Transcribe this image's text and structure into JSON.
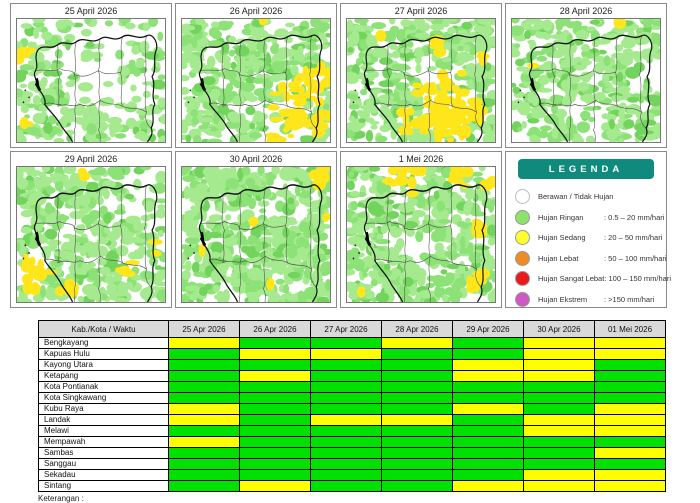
{
  "maps": {
    "colors": {
      "light_green": "#a6ea90",
      "green": "#8ce276",
      "dark_green": "#72d45c",
      "yellow": "#ffe61a"
    },
    "panels": [
      {
        "title": "25 April 2026",
        "pattern": {
          "green": 0.62,
          "white": [
            [
              0.6,
              0.18,
              0.42
            ],
            [
              0.52,
              0.48,
              0.3
            ],
            [
              0.72,
              0.62,
              0.25
            ],
            [
              0.38,
              0.32,
              0.18
            ]
          ],
          "yellow": [
            [
              0.05,
              0.3,
              0.06
            ],
            [
              0.07,
              0.84,
              0.06
            ],
            [
              0.02,
              0.62,
              0.04
            ]
          ]
        }
      },
      {
        "title": "26 April 2026",
        "pattern": {
          "green": 0.8,
          "white": [
            [
              0.35,
              0.07,
              0.13
            ],
            [
              0.62,
              0.1,
              0.1
            ],
            [
              0.13,
              0.45,
              0.08
            ]
          ],
          "yellow": [
            [
              0.8,
              0.72,
              0.28
            ],
            [
              0.92,
              0.5,
              0.14
            ],
            [
              0.68,
              0.92,
              0.14
            ],
            [
              0.97,
              0.88,
              0.12
            ],
            [
              0.55,
              0.03,
              0.05
            ]
          ]
        }
      },
      {
        "title": "27 April 2026",
        "pattern": {
          "green": 0.88,
          "white": [
            [
              0.08,
              0.55,
              0.07
            ]
          ],
          "yellow": [
            [
              0.7,
              0.72,
              0.28
            ],
            [
              0.55,
              0.58,
              0.14
            ],
            [
              0.45,
              0.85,
              0.12
            ],
            [
              0.6,
              0.2,
              0.08
            ],
            [
              0.22,
              0.13,
              0.05
            ],
            [
              0.95,
              0.33,
              0.09
            ]
          ]
        }
      },
      {
        "title": "28 April 2026",
        "pattern": {
          "green": 0.78,
          "white": [
            [
              0.78,
              0.13,
              0.2
            ],
            [
              0.96,
              0.42,
              0.14
            ],
            [
              0.52,
              0.9,
              0.1
            ],
            [
              0.3,
              0.55,
              0.08
            ]
          ],
          "yellow": [
            [
              0.12,
              0.36,
              0.04
            ],
            [
              0.73,
              0.04,
              0.04
            ],
            [
              0.3,
              0.26,
              0.03
            ]
          ]
        }
      },
      {
        "title": "29 April 2026",
        "pattern": {
          "green": 0.82,
          "white": [
            [
              0.85,
              0.1,
              0.22
            ],
            [
              0.6,
              0.28,
              0.1
            ],
            [
              0.45,
              0.12,
              0.08
            ]
          ],
          "yellow": [
            [
              0.13,
              0.78,
              0.15
            ],
            [
              0.35,
              0.92,
              0.09
            ],
            [
              0.74,
              0.72,
              0.08
            ],
            [
              0.95,
              0.6,
              0.07
            ],
            [
              0.45,
              0.04,
              0.04
            ]
          ]
        }
      },
      {
        "title": "30 April 2026",
        "pattern": {
          "green": 0.9,
          "white": [
            [
              0.3,
              0.35,
              0.08
            ],
            [
              0.65,
              0.5,
              0.06
            ]
          ],
          "yellow": [
            [
              0.93,
              0.06,
              0.07
            ],
            [
              0.5,
              0.42,
              0.04
            ],
            [
              0.62,
              0.85,
              0.05
            ],
            [
              0.98,
              0.35,
              0.05
            ],
            [
              0.15,
              0.6,
              0.03
            ]
          ]
        }
      },
      {
        "title": "1 Mei 2026",
        "pattern": {
          "green": 0.93,
          "white": [
            [
              0.45,
              0.6,
              0.1
            ],
            [
              0.58,
              0.76,
              0.08
            ]
          ],
          "yellow": [
            [
              0.45,
              0.05,
              0.13
            ],
            [
              0.75,
              0.1,
              0.12
            ],
            [
              0.96,
              0.14,
              0.1
            ],
            [
              0.9,
              0.45,
              0.07
            ],
            [
              0.87,
              0.86,
              0.08
            ],
            [
              0.08,
              0.9,
              0.05
            ],
            [
              0.3,
              0.08,
              0.06
            ]
          ]
        }
      }
    ]
  },
  "legend": {
    "title": "LEGENDA",
    "header_color": "#0f8a7c",
    "items": [
      {
        "label": "Berawan / Tidak Hujan",
        "value": "",
        "color": "#ffffff"
      },
      {
        "label": "Hujan Ringan",
        "value": ": 0.5 – 20 mm/hari",
        "color": "#8ce26a"
      },
      {
        "label": "Hujan Sedang",
        "value": ": 20 – 50 mm/hari",
        "color": "#ffff2e"
      },
      {
        "label": "Hujan Lebat",
        "value": ": 50 – 100 mm/hari",
        "color": "#ef8b26"
      },
      {
        "label": "Hujan Sangat Lebat",
        "value": ": 100 – 150 mm/hari",
        "color": "#e9191c"
      },
      {
        "label": "Hujan Ekstrem",
        "value": ": >150 mm/hari",
        "color": "#d058c4"
      }
    ]
  },
  "table": {
    "header": [
      "Kab./Kota / Waktu",
      "25 Apr 2026",
      "26 Apr 2026",
      "27 Apr 2026",
      "28 Apr 2026",
      "29 Apr 2026",
      "30 Apr 2026",
      "01 Mei 2026"
    ],
    "header_bg": "#d9d9d9",
    "colors": {
      "G": "#00e100",
      "Y": "#ffff00"
    },
    "rows": [
      {
        "name": "Bengkayang",
        "cells": [
          "Y",
          "G",
          "G",
          "Y",
          "G",
          "Y",
          "Y"
        ]
      },
      {
        "name": "Kapuas Hulu",
        "cells": [
          "G",
          "Y",
          "Y",
          "G",
          "G",
          "Y",
          "Y"
        ]
      },
      {
        "name": "Kayong Utara",
        "cells": [
          "G",
          "G",
          "G",
          "G",
          "Y",
          "Y",
          "G"
        ]
      },
      {
        "name": "Ketapang",
        "cells": [
          "G",
          "Y",
          "G",
          "G",
          "Y",
          "Y",
          "G"
        ]
      },
      {
        "name": "Kota Pontianak",
        "cells": [
          "G",
          "G",
          "G",
          "G",
          "G",
          "G",
          "G"
        ]
      },
      {
        "name": "Kota Singkawang",
        "cells": [
          "G",
          "G",
          "G",
          "G",
          "G",
          "G",
          "G"
        ]
      },
      {
        "name": "Kubu Raya",
        "cells": [
          "Y",
          "G",
          "G",
          "G",
          "Y",
          "G",
          "Y"
        ]
      },
      {
        "name": "Landak",
        "cells": [
          "Y",
          "G",
          "Y",
          "Y",
          "G",
          "Y",
          "Y"
        ]
      },
      {
        "name": "Melawi",
        "cells": [
          "G",
          "G",
          "G",
          "G",
          "G",
          "Y",
          "Y"
        ]
      },
      {
        "name": "Mempawah",
        "cells": [
          "Y",
          "G",
          "G",
          "G",
          "G",
          "G",
          "G"
        ]
      },
      {
        "name": "Sambas",
        "cells": [
          "G",
          "G",
          "G",
          "G",
          "G",
          "G",
          "Y"
        ]
      },
      {
        "name": "Sanggau",
        "cells": [
          "G",
          "G",
          "G",
          "G",
          "G",
          "G",
          "G"
        ]
      },
      {
        "name": "Sekadau",
        "cells": [
          "G",
          "G",
          "G",
          "G",
          "G",
          "Y",
          "Y"
        ]
      },
      {
        "name": "Sintang",
        "cells": [
          "G",
          "Y",
          "G",
          "G",
          "Y",
          "Y",
          "Y"
        ]
      }
    ]
  },
  "footer": {
    "note": "Keterangan :"
  }
}
